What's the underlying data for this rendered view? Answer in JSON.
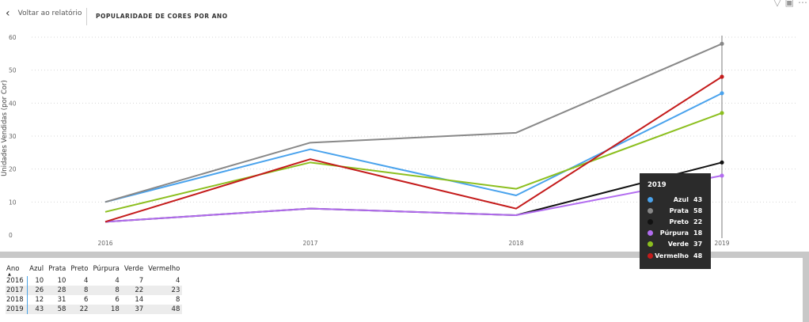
{
  "header": {
    "back_label": "Voltar ao relatório",
    "title": "POPULARIDADE DE CORES POR ANO"
  },
  "top_icons": [
    "filter-icon",
    "focus-icon",
    "more-icon"
  ],
  "chart_data": {
    "type": "line",
    "x": [
      "2016",
      "2017",
      "2018",
      "2019"
    ],
    "ylabel": "Unidades Vendidas (por Cor)",
    "ylim": [
      0,
      60
    ],
    "yticks": [
      0,
      10,
      20,
      30,
      40,
      50,
      60
    ],
    "grid": true,
    "series": [
      {
        "name": "Azul",
        "color": "#4aa3ed",
        "values": [
          10,
          26,
          12,
          43
        ]
      },
      {
        "name": "Prata",
        "color": "#888888",
        "values": [
          10,
          28,
          31,
          58
        ]
      },
      {
        "name": "Preto",
        "color": "#111111",
        "values": [
          4,
          8,
          6,
          22
        ]
      },
      {
        "name": "Púrpura",
        "color": "#b26cf0",
        "values": [
          4,
          8,
          6,
          18
        ]
      },
      {
        "name": "Verde",
        "color": "#8cbf1f",
        "values": [
          7,
          22,
          14,
          37
        ]
      },
      {
        "name": "Vermelho",
        "color": "#c41b1b",
        "values": [
          4,
          23,
          8,
          48
        ]
      }
    ],
    "highlight_x": "2019"
  },
  "tooltip": {
    "title": "2019",
    "rows": [
      {
        "name": "Azul",
        "value": "43",
        "color": "#4aa3ed"
      },
      {
        "name": "Prata",
        "value": "58",
        "color": "#888888"
      },
      {
        "name": "Preto",
        "value": "22",
        "color": "#111111"
      },
      {
        "name": "Púrpura",
        "value": "18",
        "color": "#b26cf0"
      },
      {
        "name": "Verde",
        "value": "37",
        "color": "#8cbf1f"
      },
      {
        "name": "Vermelho",
        "value": "48",
        "color": "#c41b1b"
      }
    ]
  },
  "table": {
    "headers": [
      "Ano",
      "Azul",
      "Prata",
      "Preto",
      "Púrpura",
      "Verde",
      "Vermelho"
    ],
    "rows": [
      [
        "2016",
        "10",
        "10",
        "4",
        "4",
        "7",
        "4"
      ],
      [
        "2017",
        "26",
        "28",
        "8",
        "8",
        "22",
        "23"
      ],
      [
        "2018",
        "12",
        "31",
        "6",
        "6",
        "14",
        "8"
      ],
      [
        "2019",
        "43",
        "58",
        "22",
        "18",
        "37",
        "48"
      ]
    ]
  }
}
